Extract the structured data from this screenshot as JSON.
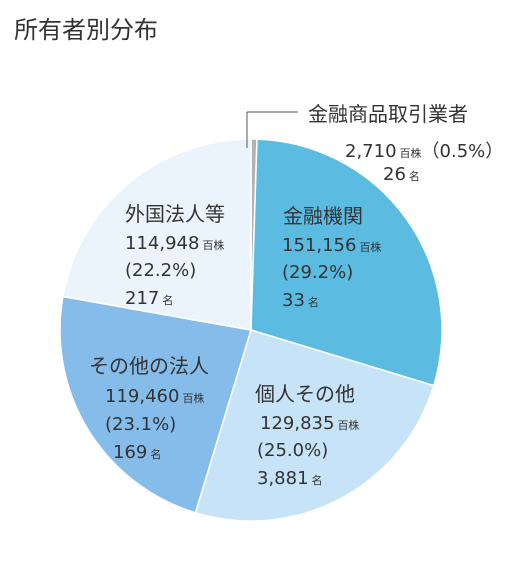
{
  "chart_data": {
    "type": "pie",
    "title": "所有者別分布",
    "unit_shares": "百株",
    "unit_holders": "名",
    "slices": [
      {
        "name": "金融商品取引業者",
        "shares": "2,710",
        "percent": "0.5",
        "percent_text": "（0.5%）",
        "holders": "26",
        "color": "#b3b3b3"
      },
      {
        "name": "金融機関",
        "shares": "151,156",
        "percent": "29.2",
        "percent_text": "(29.2%)",
        "holders": "33",
        "color": "#5bbbe1"
      },
      {
        "name": "個人その他",
        "shares": "129,835",
        "percent": "25.0",
        "percent_text": "(25.0%)",
        "holders": "3,881",
        "color": "#c7e3f8"
      },
      {
        "name": "その他の法人",
        "shares": "119,460",
        "percent": "23.1",
        "percent_text": "(23.1%)",
        "holders": "169",
        "color": "#86bce9"
      },
      {
        "name": "外国法人等",
        "shares": "114,948",
        "percent": "22.2",
        "percent_text": "(22.2%)",
        "holders": "217",
        "color": "#ebf4fd"
      }
    ]
  }
}
